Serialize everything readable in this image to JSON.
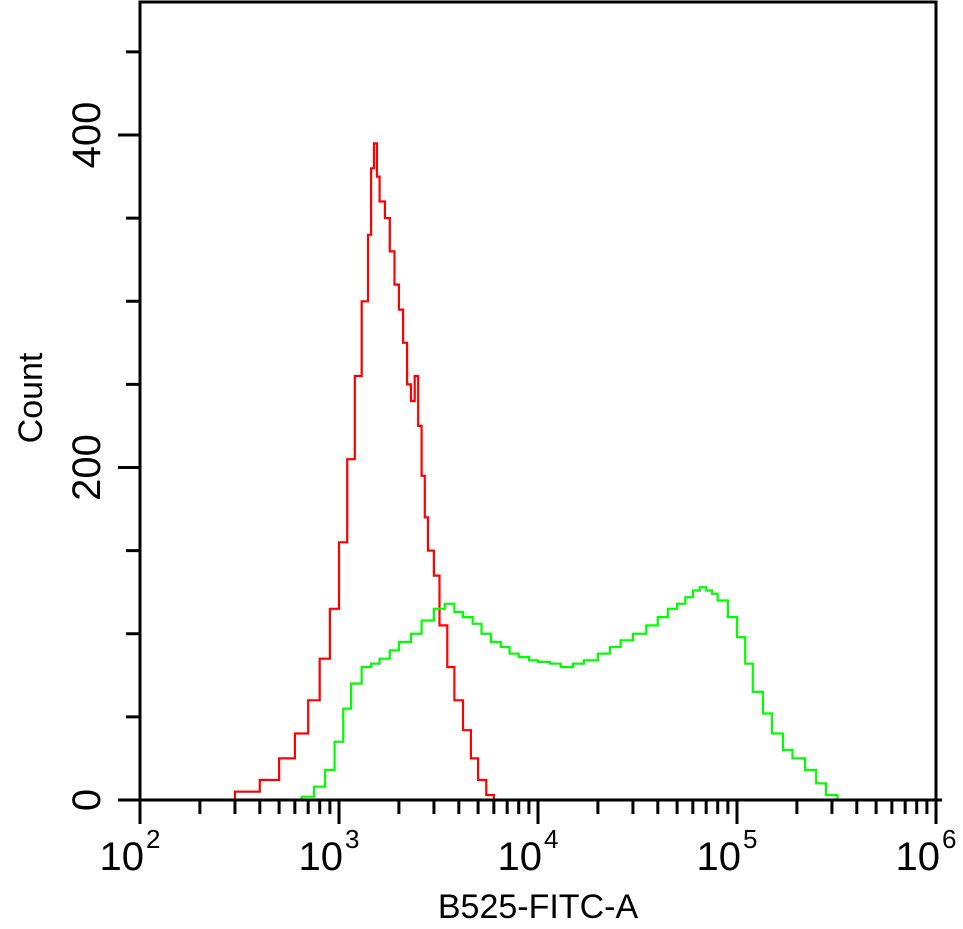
{
  "chart_data": {
    "type": "line",
    "xlabel": "B525-FITC-A",
    "ylabel": "Count",
    "x_scale": "log",
    "xlim": [
      100,
      1000000
    ],
    "ylim": [
      0,
      480
    ],
    "grid": false,
    "legend": "none",
    "x_ticks": [
      {
        "value": 100,
        "base": "10",
        "exp": "2"
      },
      {
        "value": 1000,
        "base": "10",
        "exp": "3"
      },
      {
        "value": 10000,
        "base": "10",
        "exp": "4"
      },
      {
        "value": 100000,
        "base": "10",
        "exp": "5"
      },
      {
        "value": 1000000,
        "base": "10",
        "exp": "6"
      }
    ],
    "y_ticks": [
      {
        "value": 0,
        "label": "0"
      },
      {
        "value": 200,
        "label": "200"
      },
      {
        "value": 400,
        "label": "400"
      }
    ],
    "colors": {
      "red": "#ff0000",
      "green": "#00ff00",
      "axis": "#000000"
    },
    "series": [
      {
        "color": "#ff0000",
        "x": [
          100,
          220,
          300,
          400,
          500,
          600,
          700,
          800,
          900,
          1000,
          1100,
          1200,
          1300,
          1400,
          1450,
          1500,
          1550,
          1600,
          1700,
          1800,
          1900,
          2000,
          2100,
          2200,
          2300,
          2400,
          2500,
          2600,
          2700,
          2800,
          3000,
          3200,
          3500,
          3800,
          4200,
          4600,
          5000,
          5500,
          6000
        ],
        "y": [
          0,
          0,
          5,
          12,
          25,
          40,
          60,
          85,
          115,
          155,
          205,
          255,
          300,
          340,
          380,
          395,
          375,
          360,
          350,
          330,
          310,
          295,
          275,
          250,
          240,
          255,
          225,
          195,
          170,
          150,
          135,
          105,
          80,
          60,
          42,
          25,
          12,
          3,
          0
        ]
      },
      {
        "color": "#00ff00",
        "x": [
          550,
          650,
          750,
          850,
          950,
          1050,
          1150,
          1300,
          1450,
          1600,
          1800,
          2000,
          2300,
          2600,
          3000,
          3400,
          3800,
          4200,
          4700,
          5200,
          5800,
          6500,
          7200,
          8000,
          9000,
          10000,
          11500,
          13000,
          15000,
          17000,
          20000,
          23000,
          26000,
          30000,
          35000,
          40000,
          45000,
          50000,
          55000,
          60000,
          65000,
          70000,
          75000,
          80000,
          90000,
          100000,
          110000,
          120000,
          135000,
          150000,
          170000,
          190000,
          220000,
          250000,
          280000,
          320000,
          350000
        ],
        "y": [
          0,
          2,
          8,
          18,
          35,
          55,
          70,
          80,
          82,
          85,
          90,
          95,
          100,
          108,
          115,
          118,
          113,
          110,
          106,
          100,
          95,
          92,
          88,
          86,
          84,
          83,
          82,
          80,
          82,
          84,
          88,
          92,
          96,
          100,
          105,
          110,
          115,
          118,
          122,
          126,
          128,
          126,
          124,
          120,
          110,
          98,
          82,
          65,
          52,
          40,
          30,
          25,
          18,
          10,
          3,
          0,
          0
        ]
      }
    ]
  }
}
